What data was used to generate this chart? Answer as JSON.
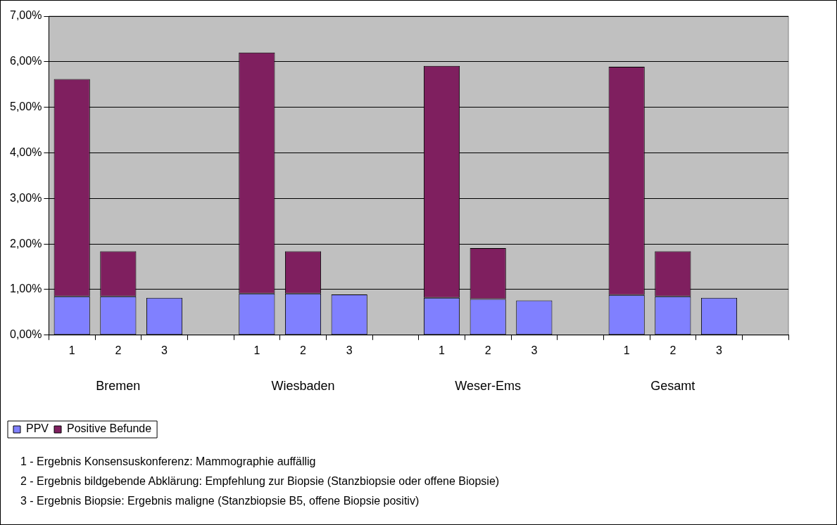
{
  "chart_data": {
    "type": "bar",
    "stacked": true,
    "categories": [
      "1",
      "2",
      "3",
      null,
      "1",
      "2",
      "3",
      null,
      "1",
      "2",
      "3",
      null,
      "1",
      "2",
      "3",
      null
    ],
    "series": [
      {
        "name": "PPV",
        "color": "#8080ff",
        "values": [
          0.85,
          0.85,
          0.82,
          null,
          0.91,
          0.91,
          0.89,
          null,
          0.82,
          0.79,
          0.76,
          null,
          0.88,
          0.85,
          0.82,
          null
        ]
      },
      {
        "name": "Positive Befunde",
        "color": "#7f1f5f",
        "values": [
          4.77,
          0.99,
          null,
          null,
          5.29,
          0.93,
          null,
          null,
          5.09,
          1.12,
          null,
          null,
          5.01,
          0.99,
          null,
          null
        ]
      }
    ],
    "ylim": [
      0,
      7
    ],
    "yticks": [
      {
        "value": 0,
        "label": "0,00%"
      },
      {
        "value": 1,
        "label": "1,00%"
      },
      {
        "value": 2,
        "label": "2,00%"
      },
      {
        "value": 3,
        "label": "3,00%"
      },
      {
        "value": 4,
        "label": "4,00%"
      },
      {
        "value": 5,
        "label": "5,00%"
      },
      {
        "value": 6,
        "label": "6,00%"
      },
      {
        "value": 7,
        "label": "7,00%"
      }
    ],
    "grid": "y",
    "legend": "bottom left",
    "annotations": [
      "Bremen",
      "Wiesbaden",
      "Weser-Ems",
      "Gesamt",
      "1 - Ergebnis Konsensuskonferenz: Mammographie auffällig",
      "2 - Ergebnis bildgebende Abklärung: Empfehlung zur Biopsie (Stanzbiopsie oder offene Biopsie)",
      "3 - Ergebnis Biopsie: Ergebnis maligne (Stanzbiopsie B5, offene Biopsie positiv)"
    ]
  }
}
